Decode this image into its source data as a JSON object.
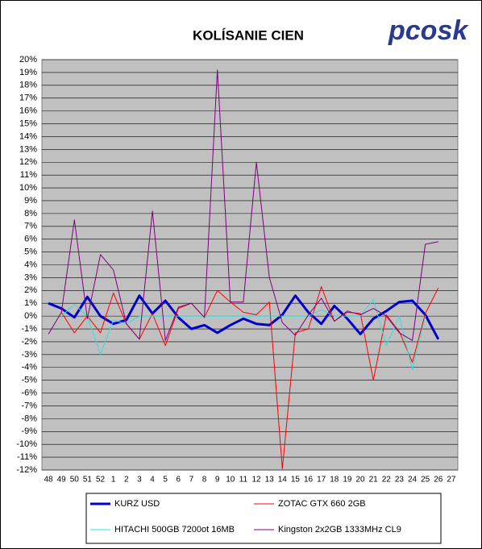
{
  "logo": "pcosk",
  "chart_data": {
    "type": "line",
    "title": "KOLÍSANIE CIEN",
    "categories": [
      "48",
      "49",
      "50",
      "51",
      "52",
      "1",
      "2",
      "3",
      "4",
      "5",
      "6",
      "7",
      "8",
      "9",
      "10",
      "11",
      "12",
      "13",
      "14",
      "15",
      "16",
      "17",
      "18",
      "19",
      "20",
      "21",
      "22",
      "23",
      "24",
      "25",
      "26",
      "27"
    ],
    "ylim": [
      -12,
      20
    ],
    "yticks": [
      {
        "value": -12,
        "label": "-12%"
      },
      {
        "value": -11,
        "label": "-11%"
      },
      {
        "value": -10,
        "label": "-10%"
      },
      {
        "value": -9,
        "label": "-9%"
      },
      {
        "value": -8,
        "label": "-8%"
      },
      {
        "value": -7,
        "label": "-7%"
      },
      {
        "value": -6,
        "label": "-6%"
      },
      {
        "value": -5,
        "label": "-5%"
      },
      {
        "value": -4,
        "label": "-4%"
      },
      {
        "value": -3,
        "label": "-3%"
      },
      {
        "value": -2,
        "label": "-2%"
      },
      {
        "value": -1,
        "label": "-1%"
      },
      {
        "value": 0,
        "label": "0%"
      },
      {
        "value": 1,
        "label": "1%"
      },
      {
        "value": 2,
        "label": "2%"
      },
      {
        "value": 3,
        "label": "3%"
      },
      {
        "value": 4,
        "label": "4%"
      },
      {
        "value": 5,
        "label": "5%"
      },
      {
        "value": 6,
        "label": "6%"
      },
      {
        "value": 7,
        "label": "7%"
      },
      {
        "value": 8,
        "label": "8%"
      },
      {
        "value": 9,
        "label": "9%"
      },
      {
        "value": 10,
        "label": "10%"
      },
      {
        "value": 11,
        "label": "11%"
      },
      {
        "value": 12,
        "label": "12%"
      },
      {
        "value": 13,
        "label": "13%"
      },
      {
        "value": 14,
        "label": "14%"
      },
      {
        "value": 15,
        "label": "15%"
      },
      {
        "value": 16,
        "label": "16%"
      },
      {
        "value": 17,
        "label": "17%"
      },
      {
        "value": 18,
        "label": "18%"
      },
      {
        "value": 19,
        "label": "19%"
      },
      {
        "value": 20,
        "label": "20%"
      }
    ],
    "grid": true,
    "legend": "bottom",
    "series": [
      {
        "name": "KURZ USD",
        "color": "#0000cc",
        "width": 3,
        "values": [
          1.0,
          0.6,
          -0.1,
          1.5,
          0,
          -0.6,
          -0.3,
          1.6,
          0.2,
          1.2,
          -0.1,
          -1.0,
          -0.7,
          -1.3,
          -0.7,
          -0.2,
          -0.6,
          -0.7,
          0.1,
          1.6,
          0.3,
          -0.6,
          0.8,
          -0.2,
          -1.4,
          -0.2,
          0.4,
          1.1,
          1.2,
          0.1,
          -1.8,
          null
        ]
      },
      {
        "name": "ZOTAC GTX 660 2GB",
        "color": "#ff0000",
        "width": 1,
        "values": [
          null,
          0.3,
          -1.3,
          0,
          -1.3,
          1.8,
          -0.6,
          -1.8,
          0.2,
          -2.3,
          0.6,
          1.0,
          -0.1,
          2.0,
          1.1,
          0.3,
          0.1,
          1.1,
          -11.9,
          -1.3,
          -1.0,
          2.3,
          -0.4,
          0.3,
          0.2,
          -5.0,
          0.1,
          -1.2,
          -3.6,
          0.2,
          2.2,
          null
        ]
      },
      {
        "name": "HITACHI 500GB 7200ot 16MB",
        "color": "#33dddd",
        "width": 1,
        "values": [
          null,
          0,
          0.9,
          0,
          -3.0,
          -0.3,
          -0.6,
          0,
          0,
          0,
          0,
          0,
          0,
          0,
          0,
          0,
          0,
          0,
          0,
          0,
          0,
          0.5,
          0,
          0,
          0,
          1.3,
          -2.3,
          0,
          -4.2,
          0,
          null,
          null
        ]
      },
      {
        "name": "Kingston 2x2GB 1333MHz CL9",
        "color": "#800080",
        "width": 1,
        "values": [
          -1.4,
          0.3,
          7.5,
          -0.2,
          4.8,
          3.6,
          -0.6,
          -1.8,
          8.2,
          -1.9,
          0.7,
          1.0,
          -0.1,
          19.2,
          1.1,
          1.1,
          12.0,
          3.0,
          -0.5,
          -1.5,
          0.1,
          1.4,
          -0.4,
          0.4,
          0.1,
          0.6,
          0,
          -1.3,
          -1.9,
          5.6,
          5.8,
          null
        ]
      }
    ]
  }
}
